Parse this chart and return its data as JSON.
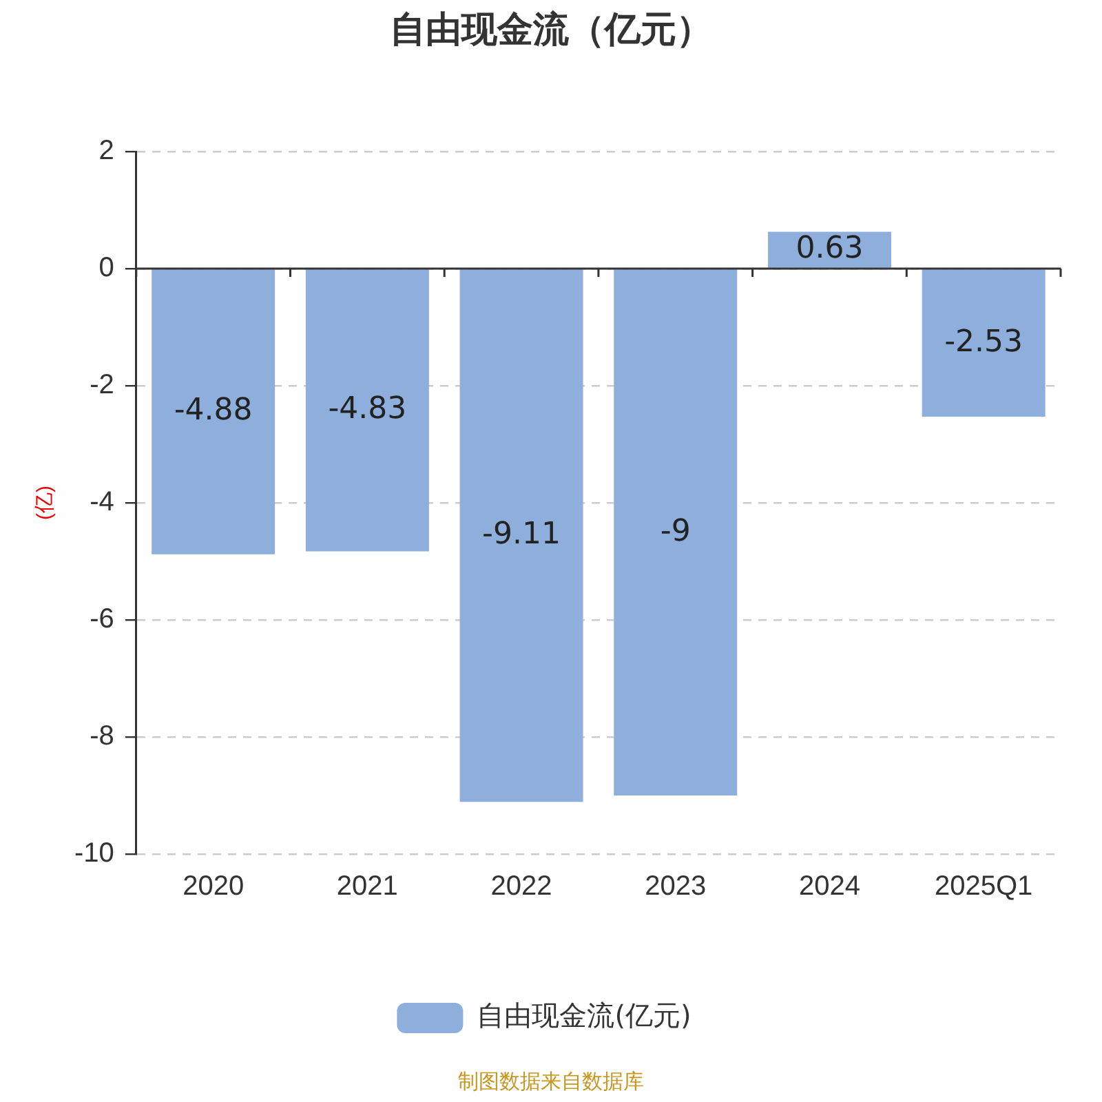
{
  "chart_data": {
    "type": "bar",
    "title": "自由现金流（亿元）",
    "ylabel": "(亿)",
    "categories": [
      "2020",
      "2021",
      "2022",
      "2023",
      "2024",
      "2025Q1"
    ],
    "series": [
      {
        "name": "自由现金流(亿元)",
        "color": "#8eaedb",
        "values": [
          -4.88,
          -4.83,
          -9.11,
          -9,
          0.63,
          -2.53
        ]
      }
    ],
    "ylim": [
      -10,
      2
    ],
    "yticks": [
      -10,
      -8,
      -6,
      -4,
      -2,
      0,
      2
    ],
    "grid": "y",
    "legend": "bottom",
    "data_labels": true,
    "annotations": [
      "制图数据来自数据库"
    ]
  }
}
